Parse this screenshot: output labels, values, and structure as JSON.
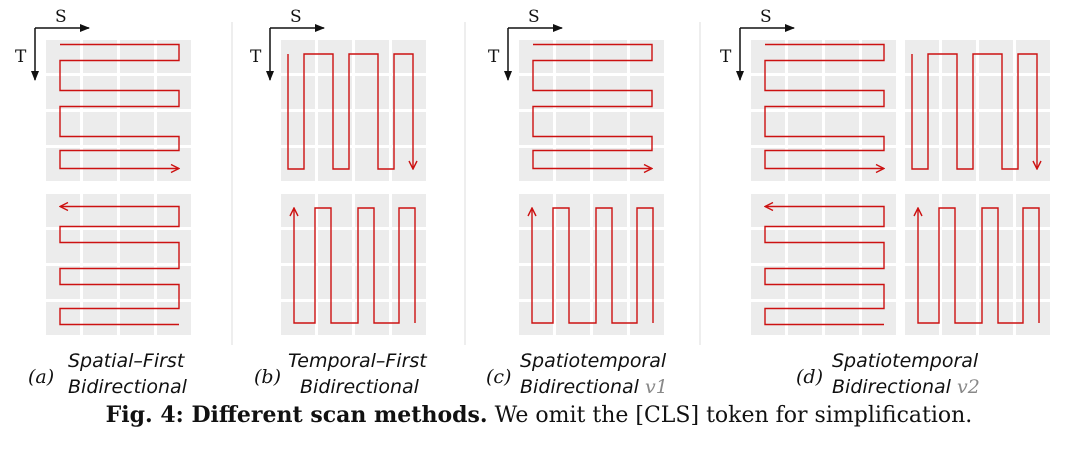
{
  "axes": {
    "s_label": "S",
    "t_label": "T"
  },
  "panels": [
    {
      "tag": "(a)",
      "line1": "Spatial–First",
      "line2": "Bidirectional",
      "version": "",
      "pattern": "spatial"
    },
    {
      "tag": "(b)",
      "line1": "Temporal–First",
      "line2": "Bidirectional",
      "version": "",
      "pattern": "temporal"
    },
    {
      "tag": "(c)",
      "line1": "Spatiotemporal",
      "line2": "Bidirectional",
      "version": "v1",
      "pattern": "st_v1"
    },
    {
      "tag": "(d)",
      "line1": "Spatiotemporal",
      "line2": "Bidirectional",
      "version": "v2",
      "pattern": "st_v2"
    }
  ],
  "caption": {
    "label": "Fig. 4: Different scan methods.",
    "text": "We omit the [CLS] token for simplification."
  },
  "colors": {
    "arrow": "#cc1111",
    "cell": "#ececec",
    "divider": "#dddddd",
    "axis": "#111111"
  }
}
